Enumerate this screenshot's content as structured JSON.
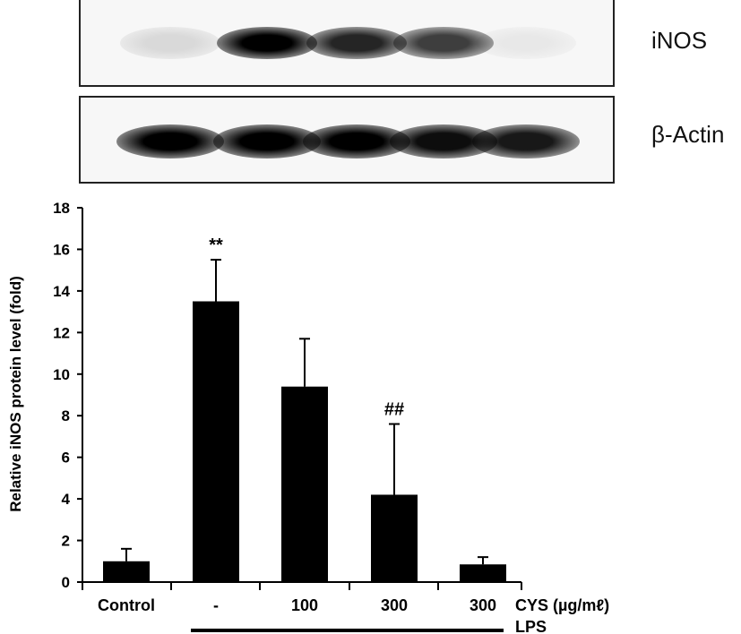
{
  "blots": {
    "inos": {
      "label": "iNOS",
      "lanes": [
        {
          "intensity": 0.12
        },
        {
          "intensity": 1.0
        },
        {
          "intensity": 0.85
        },
        {
          "intensity": 0.75
        },
        {
          "intensity": 0.06
        }
      ]
    },
    "actin": {
      "label": "β-Actin",
      "lanes": [
        {
          "intensity": 1.0
        },
        {
          "intensity": 1.0
        },
        {
          "intensity": 1.0
        },
        {
          "intensity": 0.95
        },
        {
          "intensity": 0.9
        }
      ]
    }
  },
  "chart_data": {
    "type": "bar",
    "categories": [
      "Control",
      "-",
      "100",
      "300",
      "300"
    ],
    "values": [
      1.0,
      13.5,
      9.4,
      4.2,
      0.85
    ],
    "errors": [
      0.6,
      2.0,
      2.3,
      3.4,
      0.35
    ],
    "annotations": [
      "",
      "**",
      "",
      "##",
      ""
    ],
    "ylabel": "Relative iNOS protein level (fold)",
    "ylim": [
      0,
      18
    ],
    "yticks": [
      0,
      2,
      4,
      6,
      8,
      10,
      12,
      14,
      16,
      18
    ],
    "cys_label": "CYS (µg/mℓ)",
    "lps_label": "LPS",
    "bar_color": "#000000",
    "grid": false
  }
}
